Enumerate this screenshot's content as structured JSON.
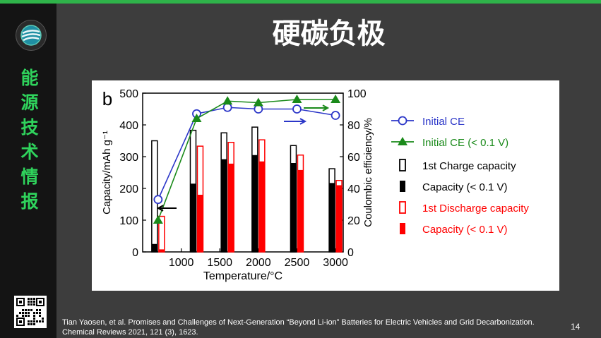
{
  "slide": {
    "title": "硬碳负极",
    "brand_chars": [
      "能",
      "源",
      "技",
      "术",
      "情",
      "报"
    ],
    "page_number": "14",
    "citation_line1": "Tian Yaosen, et al. Promises and Challenges of Next-Generation “Beyond Li-ion” Batteries for Electric Vehicles and Grid Decarbonization.",
    "citation_line2": "Chemical Reviews 2021, 121 (3), 1623.",
    "accent_color": "#2fb34a",
    "logo_icon": "globe-logo-icon",
    "qr_icon": "qr-code-icon"
  },
  "chart_data": {
    "type": "bar",
    "panel_label": "b",
    "xlabel": "Temperature/°C",
    "ylabel_left": "Capacity/mAh g⁻¹",
    "ylabel_right": "Coulombic efficiency/%",
    "x_ticks": [
      "1000",
      "1500",
      "2000",
      "2500",
      "3000"
    ],
    "y_left_ticks": [
      "0",
      "100",
      "200",
      "300",
      "400",
      "500"
    ],
    "y_right_ticks": [
      "0",
      "20",
      "40",
      "60",
      "80",
      "100"
    ],
    "ylim_left": [
      0,
      500
    ],
    "ylim_right": [
      0,
      100
    ],
    "x_temperatures": [
      700,
      1200,
      1600,
      2000,
      2500,
      3000
    ],
    "bar_series": [
      {
        "name": "1st Charge capacity",
        "style": "outline",
        "color": "#000000",
        "values": [
          350,
          383,
          375,
          393,
          335,
          262
        ]
      },
      {
        "name": "Capacity (< 0.1 V)",
        "style": "solid",
        "color": "#000000",
        "values": [
          25,
          215,
          292,
          305,
          280,
          217
        ]
      },
      {
        "name": "1st Discharge capacity",
        "style": "outline",
        "color": "#ff0000",
        "values": [
          112,
          333,
          345,
          353,
          305,
          225
        ]
      },
      {
        "name": "Capacity (< 0.1 V)",
        "style": "solid",
        "color": "#ff0000",
        "values": [
          8,
          180,
          278,
          285,
          258,
          210
        ]
      }
    ],
    "line_series": [
      {
        "name": "Initial CE",
        "marker": "circle",
        "color": "#2b36c8",
        "values": [
          33,
          87,
          91,
          90,
          90,
          86
        ]
      },
      {
        "name": "Initial CE (< 0.1 V)",
        "marker": "triangle",
        "color": "#1a8a1a",
        "values": [
          20,
          84,
          95,
          94,
          96,
          96
        ]
      }
    ],
    "legend_placement": "right",
    "grid": false
  }
}
